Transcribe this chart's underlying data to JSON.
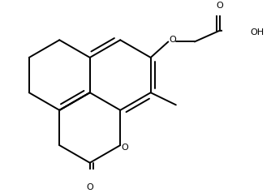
{
  "bg_color": "#ffffff",
  "line_color": "#000000",
  "lw": 1.4,
  "figsize": [
    3.34,
    2.38
  ],
  "dpi": 100,
  "xlim": [
    -2.8,
    3.2
  ],
  "ylim": [
    -2.4,
    2.0
  ]
}
